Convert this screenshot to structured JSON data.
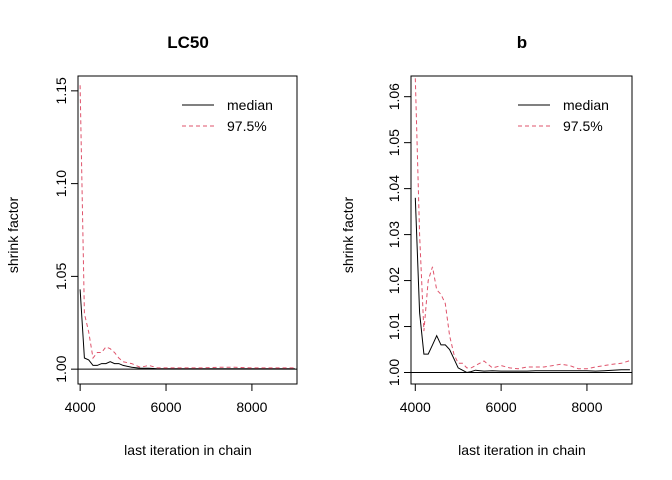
{
  "chart_data": [
    {
      "type": "line",
      "title": "LC50",
      "xlabel": "last iteration in chain",
      "ylabel": "shrink factor",
      "xlim": [
        3950,
        9050
      ],
      "ylim": [
        0.992,
        1.158
      ],
      "x_ticks": [
        4000,
        6000,
        8000
      ],
      "x_tick_labels": [
        "4000",
        "6000",
        "8000"
      ],
      "y_ticks": [
        1.0,
        1.05,
        1.1,
        1.15
      ],
      "y_tick_labels": [
        "1.00",
        "1.05",
        "1.10",
        "1.15"
      ],
      "reference_line": 1.0,
      "legend_position": "top-right",
      "series": [
        {
          "name": "median",
          "style": "solid",
          "color": "#000000",
          "x": [
            4000,
            4100,
            4200,
            4300,
            4400,
            4500,
            4600,
            4700,
            4800,
            4900,
            5000,
            5200,
            5400,
            5600,
            5800,
            6000,
            6400,
            6800,
            7200,
            7600,
            8000,
            8400,
            8800,
            9000
          ],
          "y": [
            1.043,
            1.006,
            1.005,
            1.002,
            1.002,
            1.003,
            1.003,
            1.004,
            1.003,
            1.003,
            1.002,
            1.001,
            1.0005,
            1.0005,
            1.0002,
            1.0002,
            1.0002,
            1.0002,
            1.0002,
            1.0002,
            1.0002,
            1.0002,
            1.0002,
            1.0002
          ]
        },
        {
          "name": "97.5%",
          "style": "dashed",
          "color": "#df536b",
          "x": [
            4000,
            4100,
            4200,
            4300,
            4400,
            4500,
            4600,
            4700,
            4800,
            4900,
            5000,
            5200,
            5400,
            5600,
            5800,
            6000,
            6400,
            6800,
            7200,
            7600,
            8000,
            8400,
            8800,
            9000
          ],
          "y": [
            1.153,
            1.03,
            1.02,
            1.006,
            1.009,
            1.009,
            1.012,
            1.011,
            1.009,
            1.006,
            1.004,
            1.003,
            1.001,
            1.002,
            1.0007,
            1.0007,
            1.0007,
            1.0007,
            1.001,
            1.001,
            1.0007,
            1.0007,
            1.0007,
            1.0007
          ]
        }
      ]
    },
    {
      "type": "line",
      "title": "b",
      "xlabel": "last iteration in chain",
      "ylabel": "shrink factor",
      "xlim": [
        3900,
        9050
      ],
      "ylim": [
        0.9975,
        1.0645
      ],
      "x_ticks": [
        4000,
        6000,
        8000
      ],
      "x_tick_labels": [
        "4000",
        "6000",
        "8000"
      ],
      "y_ticks": [
        1.0,
        1.01,
        1.02,
        1.03,
        1.04,
        1.05,
        1.06
      ],
      "y_tick_labels": [
        "1.00",
        "1.01",
        "1.02",
        "1.03",
        "1.04",
        "1.05",
        "1.06"
      ],
      "reference_line": 1.0,
      "legend_position": "top-right",
      "series": [
        {
          "name": "median",
          "style": "solid",
          "color": "#000000",
          "x": [
            4000,
            4100,
            4200,
            4300,
            4400,
            4500,
            4600,
            4700,
            4800,
            4900,
            5000,
            5100,
            5200,
            5300,
            5400,
            5600,
            5800,
            6000,
            6200,
            6400,
            6600,
            6800,
            7000,
            7200,
            7400,
            7600,
            7800,
            8000,
            8200,
            8400,
            8600,
            8800,
            9000
          ],
          "y": [
            1.038,
            1.013,
            1.004,
            1.004,
            1.006,
            1.008,
            1.006,
            1.006,
            1.005,
            1.003,
            1.001,
            1.0005,
            1.0,
            1.0002,
            1.0005,
            1.0003,
            1.0004,
            1.0003,
            1.0003,
            1.0003,
            1.0003,
            1.0004,
            1.0004,
            1.0004,
            1.0004,
            1.0004,
            1.0004,
            1.0004,
            1.0003,
            1.0004,
            1.0005,
            1.0006,
            1.0006
          ]
        },
        {
          "name": "97.5%",
          "style": "dashed",
          "color": "#df536b",
          "x": [
            4000,
            4100,
            4200,
            4300,
            4400,
            4500,
            4600,
            4700,
            4800,
            4900,
            5000,
            5100,
            5200,
            5300,
            5400,
            5600,
            5800,
            6000,
            6200,
            6400,
            6600,
            6800,
            7000,
            7200,
            7400,
            7600,
            7800,
            8000,
            8200,
            8400,
            8600,
            8800,
            9000
          ],
          "y": [
            1.064,
            1.03,
            1.009,
            1.02,
            1.023,
            1.018,
            1.017,
            1.015,
            1.008,
            1.004,
            1.002,
            1.002,
            1.001,
            1.001,
            1.0015,
            1.0025,
            1.001,
            1.0015,
            1.001,
            1.0008,
            1.0012,
            1.0012,
            1.0012,
            1.0015,
            1.0018,
            1.0015,
            1.0008,
            1.0008,
            1.0012,
            1.0015,
            1.0018,
            1.002,
            1.0026
          ]
        }
      ]
    }
  ]
}
